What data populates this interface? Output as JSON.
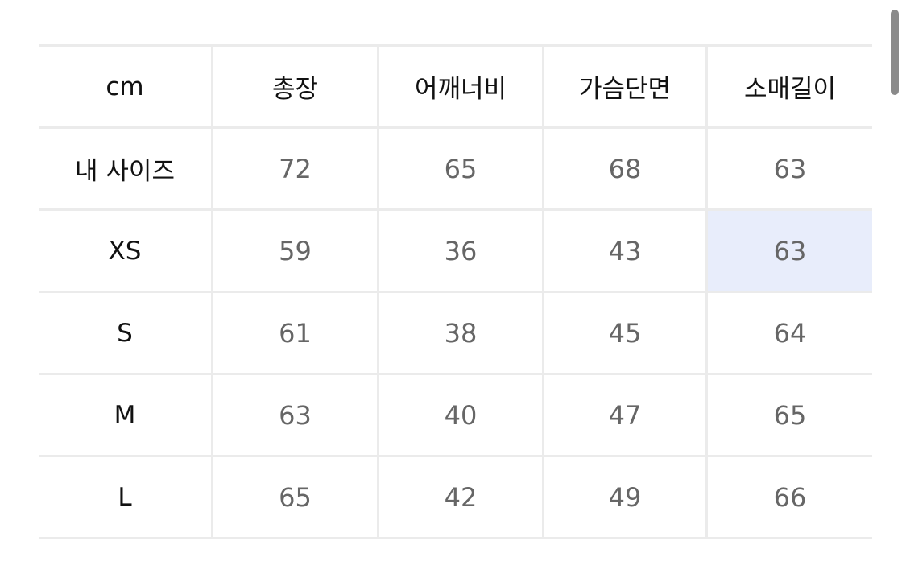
{
  "table": {
    "headers": [
      "cm",
      "총장",
      "어깨너비",
      "가슴단면",
      "소매길이"
    ],
    "rows": [
      {
        "label": "내 사이즈",
        "values": [
          "72",
          "65",
          "68",
          "63"
        ]
      },
      {
        "label": "XS",
        "values": [
          "59",
          "36",
          "43",
          "63"
        ]
      },
      {
        "label": "S",
        "values": [
          "61",
          "38",
          "45",
          "64"
        ]
      },
      {
        "label": "M",
        "values": [
          "63",
          "40",
          "47",
          "65"
        ]
      },
      {
        "label": "L",
        "values": [
          "65",
          "42",
          "49",
          "66"
        ]
      }
    ],
    "highlight": {
      "row": "XS",
      "column": "소매길이",
      "color": "#e8edfb"
    }
  }
}
